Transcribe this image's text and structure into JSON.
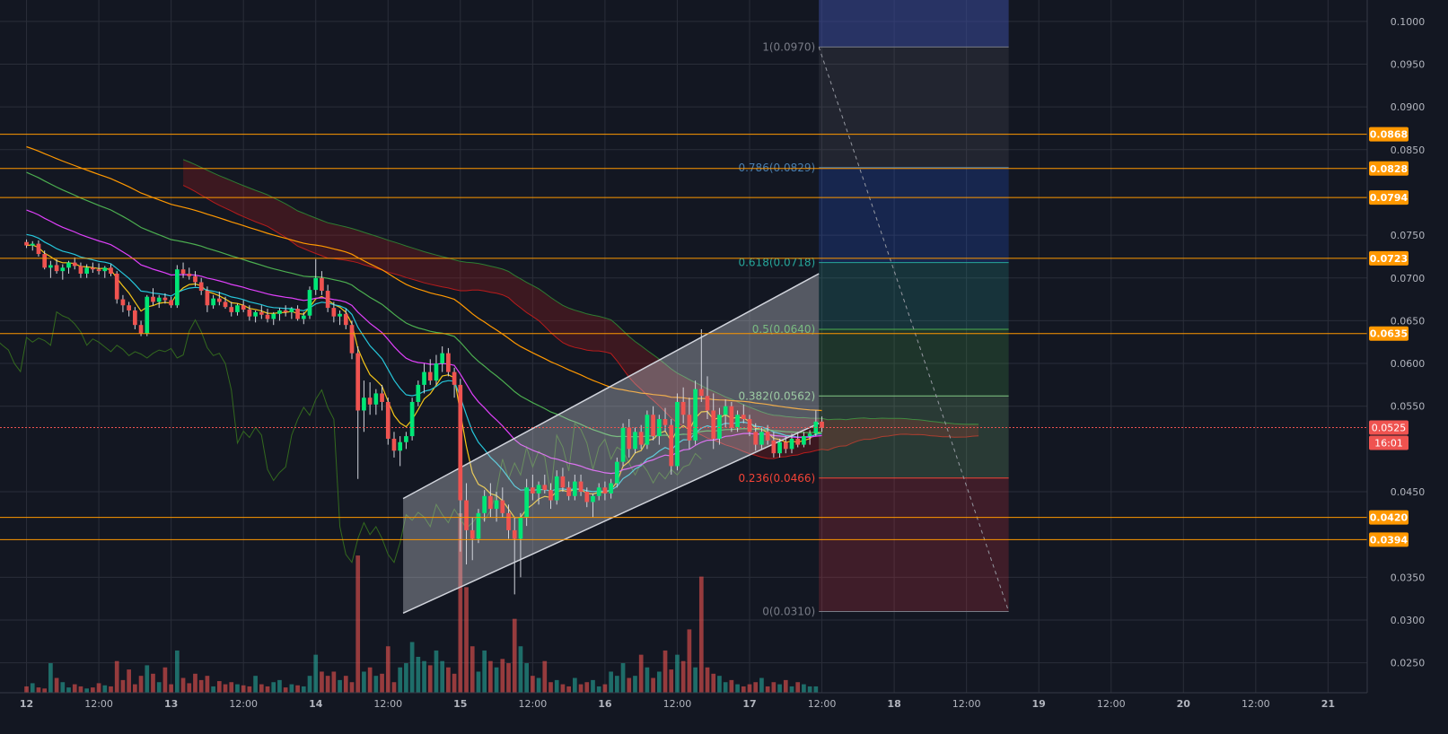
{
  "chart_data": {
    "type": "candlestick",
    "symbol_note": "",
    "price_axis": {
      "ticks": [
        "0.1000",
        "0.0950",
        "0.0900",
        "0.0850",
        "0.0750",
        "0.0700",
        "0.0650",
        "0.0600",
        "0.0550",
        "0.0450",
        "0.0350",
        "0.0300",
        "0.0250"
      ],
      "tick_values": [
        0.1,
        0.095,
        0.09,
        0.085,
        0.075,
        0.07,
        0.065,
        0.06,
        0.055,
        0.045,
        0.035,
        0.03,
        0.025
      ],
      "range": [
        0.0215,
        0.1025
      ]
    },
    "time_axis": {
      "labels": [
        "12",
        "12:00",
        "13",
        "12:00",
        "14",
        "12:00",
        "15",
        "12:00",
        "16",
        "12:00",
        "17",
        "12:00",
        "18",
        "12:00",
        "19",
        "12:00",
        "20",
        "12:00",
        "21"
      ],
      "label_hours": [
        0,
        12,
        24,
        36,
        48,
        60,
        72,
        84,
        96,
        108,
        120,
        132,
        144,
        156,
        168,
        180,
        192,
        204,
        216
      ],
      "visible_hours": [
        -4.4,
        222.5
      ]
    },
    "horizontal_levels": [
      {
        "label": "0.0868",
        "value": 0.0868
      },
      {
        "label": "0.0828",
        "value": 0.0828
      },
      {
        "label": "0.0794",
        "value": 0.0794
      },
      {
        "label": "0.0723",
        "value": 0.0723
      },
      {
        "label": "0.0635",
        "value": 0.0635
      },
      {
        "label": "0.0420",
        "value": 0.042
      },
      {
        "label": "0.0394",
        "value": 0.0394
      }
    ],
    "current_price": {
      "label": "0.0525",
      "value": 0.0525,
      "countdown": "16:01"
    },
    "fibonacci": {
      "start_hour": 131.5,
      "end_hour": 163.0,
      "levels": [
        {
          "label": "1(0.0970)",
          "value": 0.097,
          "color": "#787b86"
        },
        {
          "label": "0.786(0.0829)",
          "value": 0.0829,
          "color": "#4a7fb0"
        },
        {
          "label": "0.618(0.0718)",
          "value": 0.0718,
          "color": "#26a69a"
        },
        {
          "label": "0.5(0.0640)",
          "value": 0.064,
          "color": "#4caf50"
        },
        {
          "label": "0.382(0.0562)",
          "value": 0.0562,
          "color": "#81c784"
        },
        {
          "label": "0.236(0.0466)",
          "value": 0.0466,
          "color": "#f44336"
        },
        {
          "label": "0(0.0310)",
          "value": 0.031,
          "color": "#787b86"
        }
      ],
      "band_colors": [
        "#3b4a9a",
        "#5d606b",
        "#2962ff",
        "#26a69a",
        "#4caf50",
        "#81c784",
        "#f23645",
        "#f23645"
      ]
    },
    "channel": {
      "lower": [
        [
          62.5,
          0.0308
        ],
        [
          131.5,
          0.053
        ]
      ],
      "upper": [
        [
          62.5,
          0.0442
        ],
        [
          131.5,
          0.0705
        ]
      ]
    },
    "candles_ohlc_hourly": [
      [
        0.0742,
        0.0745,
        0.0735,
        0.0738
      ],
      [
        0.0738,
        0.0743,
        0.0732,
        0.074
      ],
      [
        0.074,
        0.0744,
        0.0725,
        0.0728
      ],
      [
        0.0728,
        0.0732,
        0.071,
        0.0712
      ],
      [
        0.0712,
        0.072,
        0.07,
        0.0715
      ],
      [
        0.0715,
        0.0722,
        0.0705,
        0.0708
      ],
      [
        0.0708,
        0.0716,
        0.0698,
        0.0712
      ],
      [
        0.0712,
        0.072,
        0.0705,
        0.0718
      ],
      [
        0.0718,
        0.0724,
        0.071,
        0.0714
      ],
      [
        0.0714,
        0.0718,
        0.07,
        0.0705
      ],
      [
        0.0705,
        0.0716,
        0.07,
        0.0712
      ],
      [
        0.0712,
        0.0718,
        0.0706,
        0.071
      ],
      [
        0.071,
        0.0717,
        0.0704,
        0.0708
      ],
      [
        0.0708,
        0.0714,
        0.07,
        0.0712
      ],
      [
        0.0712,
        0.0716,
        0.0702,
        0.0705
      ],
      [
        0.0705,
        0.0708,
        0.067,
        0.0675
      ],
      [
        0.0675,
        0.068,
        0.066,
        0.0668
      ],
      [
        0.0668,
        0.0672,
        0.0655,
        0.0662
      ],
      [
        0.0662,
        0.0666,
        0.064,
        0.0645
      ],
      [
        0.0645,
        0.065,
        0.0632,
        0.0635
      ],
      [
        0.0635,
        0.068,
        0.0632,
        0.0678
      ],
      [
        0.0678,
        0.0688,
        0.0668,
        0.0672
      ],
      [
        0.0672,
        0.068,
        0.0665,
        0.0677
      ],
      [
        0.0677,
        0.0682,
        0.067,
        0.0674
      ],
      [
        0.0674,
        0.0678,
        0.0665,
        0.0668
      ],
      [
        0.0668,
        0.0715,
        0.0665,
        0.071
      ],
      [
        0.071,
        0.0718,
        0.07,
        0.0705
      ],
      [
        0.0705,
        0.0712,
        0.0698,
        0.0702
      ],
      [
        0.0702,
        0.0708,
        0.069,
        0.0695
      ],
      [
        0.0695,
        0.07,
        0.068,
        0.0685
      ],
      [
        0.0685,
        0.069,
        0.066,
        0.0668
      ],
      [
        0.0668,
        0.068,
        0.0664,
        0.0676
      ],
      [
        0.0676,
        0.0684,
        0.0668,
        0.0672
      ],
      [
        0.0672,
        0.0678,
        0.0664,
        0.0666
      ],
      [
        0.0666,
        0.0672,
        0.0655,
        0.066
      ],
      [
        0.066,
        0.067,
        0.0656,
        0.0668
      ],
      [
        0.0668,
        0.0674,
        0.066,
        0.0663
      ],
      [
        0.0663,
        0.0668,
        0.065,
        0.0655
      ],
      [
        0.0655,
        0.0662,
        0.0648,
        0.066
      ],
      [
        0.066,
        0.0668,
        0.0652,
        0.0657
      ],
      [
        0.0657,
        0.0664,
        0.0648,
        0.0652
      ],
      [
        0.0652,
        0.066,
        0.0645,
        0.0658
      ],
      [
        0.0658,
        0.0665,
        0.065,
        0.0662
      ],
      [
        0.0662,
        0.0668,
        0.0655,
        0.066
      ],
      [
        0.066,
        0.0666,
        0.0652,
        0.0664
      ],
      [
        0.0664,
        0.0668,
        0.065,
        0.0652
      ],
      [
        0.0652,
        0.066,
        0.0646,
        0.0656
      ],
      [
        0.0656,
        0.069,
        0.0652,
        0.0686
      ],
      [
        0.0686,
        0.0722,
        0.068,
        0.07
      ],
      [
        0.07,
        0.0708,
        0.068,
        0.0685
      ],
      [
        0.0685,
        0.0692,
        0.066,
        0.0665
      ],
      [
        0.0665,
        0.0672,
        0.0648,
        0.0655
      ],
      [
        0.0655,
        0.0662,
        0.0645,
        0.0658
      ],
      [
        0.0658,
        0.0664,
        0.064,
        0.0645
      ],
      [
        0.0645,
        0.065,
        0.0605,
        0.0612
      ],
      [
        0.0612,
        0.062,
        0.0465,
        0.0545
      ],
      [
        0.0545,
        0.058,
        0.052,
        0.056
      ],
      [
        0.056,
        0.0578,
        0.054,
        0.0552
      ],
      [
        0.0552,
        0.057,
        0.054,
        0.0565
      ],
      [
        0.0565,
        0.0575,
        0.0545,
        0.0555
      ],
      [
        0.0555,
        0.056,
        0.0505,
        0.0512
      ],
      [
        0.0512,
        0.052,
        0.049,
        0.0498
      ],
      [
        0.0498,
        0.0515,
        0.048,
        0.0508
      ],
      [
        0.0508,
        0.052,
        0.05,
        0.0515
      ],
      [
        0.0515,
        0.056,
        0.051,
        0.0555
      ],
      [
        0.0555,
        0.058,
        0.055,
        0.0575
      ],
      [
        0.0575,
        0.06,
        0.0565,
        0.059
      ],
      [
        0.059,
        0.0605,
        0.0575,
        0.058
      ],
      [
        0.058,
        0.061,
        0.0575,
        0.06
      ],
      [
        0.06,
        0.062,
        0.059,
        0.0612
      ],
      [
        0.0612,
        0.0618,
        0.0585,
        0.059
      ],
      [
        0.059,
        0.0595,
        0.056,
        0.0575
      ],
      [
        0.0575,
        0.0582,
        0.038,
        0.044
      ],
      [
        0.044,
        0.046,
        0.0365,
        0.0405
      ],
      [
        0.0405,
        0.042,
        0.037,
        0.0395
      ],
      [
        0.0395,
        0.043,
        0.039,
        0.0425
      ],
      [
        0.0425,
        0.0452,
        0.0415,
        0.0445
      ],
      [
        0.0445,
        0.046,
        0.042,
        0.043
      ],
      [
        0.043,
        0.045,
        0.0415,
        0.044
      ],
      [
        0.044,
        0.0455,
        0.042,
        0.0425
      ],
      [
        0.0425,
        0.0435,
        0.0395,
        0.0405
      ],
      [
        0.0405,
        0.042,
        0.033,
        0.0395
      ],
      [
        0.0395,
        0.0425,
        0.035,
        0.042
      ],
      [
        0.042,
        0.0465,
        0.041,
        0.0455
      ],
      [
        0.0455,
        0.047,
        0.044,
        0.0448
      ],
      [
        0.0448,
        0.0462,
        0.0435,
        0.0458
      ],
      [
        0.0458,
        0.047,
        0.0448,
        0.0452
      ],
      [
        0.0452,
        0.046,
        0.043,
        0.044
      ],
      [
        0.044,
        0.0475,
        0.0435,
        0.0468
      ],
      [
        0.0468,
        0.0478,
        0.045,
        0.0455
      ],
      [
        0.0455,
        0.0462,
        0.044,
        0.0445
      ],
      [
        0.0445,
        0.047,
        0.044,
        0.0462
      ],
      [
        0.0462,
        0.047,
        0.0445,
        0.045
      ],
      [
        0.045,
        0.0455,
        0.0432,
        0.0438
      ],
      [
        0.0438,
        0.0448,
        0.042,
        0.0445
      ],
      [
        0.0445,
        0.046,
        0.044,
        0.0455
      ],
      [
        0.0455,
        0.0462,
        0.044,
        0.0448
      ],
      [
        0.0448,
        0.0465,
        0.0442,
        0.046
      ],
      [
        0.046,
        0.049,
        0.0455,
        0.0485
      ],
      [
        0.0485,
        0.053,
        0.048,
        0.0525
      ],
      [
        0.0525,
        0.0535,
        0.049,
        0.05
      ],
      [
        0.05,
        0.0525,
        0.0495,
        0.052
      ],
      [
        0.052,
        0.0528,
        0.05,
        0.0505
      ],
      [
        0.0505,
        0.0545,
        0.05,
        0.054
      ],
      [
        0.054,
        0.055,
        0.051,
        0.0515
      ],
      [
        0.0515,
        0.054,
        0.0505,
        0.0535
      ],
      [
        0.0535,
        0.0548,
        0.052,
        0.0528
      ],
      [
        0.0528,
        0.0535,
        0.047,
        0.048
      ],
      [
        0.048,
        0.0565,
        0.0475,
        0.0555
      ],
      [
        0.0555,
        0.0572,
        0.053,
        0.054
      ],
      [
        0.054,
        0.056,
        0.05,
        0.051
      ],
      [
        0.051,
        0.058,
        0.0505,
        0.057
      ],
      [
        0.057,
        0.064,
        0.0555,
        0.0562
      ],
      [
        0.0562,
        0.0585,
        0.0535,
        0.0545
      ],
      [
        0.0545,
        0.0565,
        0.05,
        0.0512
      ],
      [
        0.0512,
        0.0548,
        0.0505,
        0.054
      ],
      [
        0.054,
        0.0558,
        0.0525,
        0.055
      ],
      [
        0.055,
        0.0555,
        0.052,
        0.0525
      ],
      [
        0.0525,
        0.0545,
        0.052,
        0.054
      ],
      [
        0.054,
        0.0552,
        0.053,
        0.0535
      ],
      [
        0.0535,
        0.054,
        0.0515,
        0.052
      ],
      [
        0.052,
        0.053,
        0.0498,
        0.0505
      ],
      [
        0.0505,
        0.0525,
        0.05,
        0.052
      ],
      [
        0.052,
        0.0528,
        0.0505,
        0.051
      ],
      [
        0.051,
        0.052,
        0.049,
        0.0495
      ],
      [
        0.0495,
        0.0512,
        0.049,
        0.0508
      ],
      [
        0.0508,
        0.0515,
        0.0495,
        0.05
      ],
      [
        0.05,
        0.0518,
        0.0495,
        0.0512
      ],
      [
        0.0512,
        0.052,
        0.0502,
        0.0505
      ],
      [
        0.0505,
        0.052,
        0.0502,
        0.0515
      ],
      [
        0.0515,
        0.0522,
        0.0505,
        0.0518
      ],
      [
        0.0518,
        0.0545,
        0.0515,
        0.0532
      ],
      [
        0.0532,
        0.0538,
        0.052,
        0.0525
      ]
    ],
    "volume_hourly": [
      6,
      9,
      5,
      4,
      28,
      14,
      10,
      5,
      8,
      6,
      4,
      5,
      9,
      7,
      6,
      30,
      12,
      22,
      8,
      16,
      26,
      18,
      10,
      24,
      8,
      40,
      14,
      9,
      18,
      12,
      16,
      6,
      11,
      8,
      10,
      8,
      7,
      6,
      16,
      8,
      6,
      10,
      12,
      5,
      8,
      7,
      6,
      16,
      36,
      20,
      16,
      20,
      12,
      16,
      10,
      130,
      20,
      24,
      16,
      18,
      44,
      10,
      24,
      28,
      48,
      34,
      30,
      26,
      40,
      30,
      24,
      18,
      170,
      100,
      44,
      20,
      40,
      30,
      24,
      32,
      28,
      70,
      44,
      28,
      16,
      14,
      30,
      10,
      12,
      8,
      6,
      14,
      8,
      10,
      12,
      6,
      8,
      20,
      16,
      28,
      14,
      16,
      36,
      24,
      14,
      20,
      40,
      22,
      36,
      30,
      60,
      24,
      110,
      24,
      18,
      16,
      10,
      12,
      8,
      6,
      8,
      10,
      14,
      6,
      10,
      8,
      12,
      6,
      10,
      8,
      6,
      6
    ],
    "volume_up_color": "#26a69a",
    "volume_down_color": "#ef5350"
  }
}
